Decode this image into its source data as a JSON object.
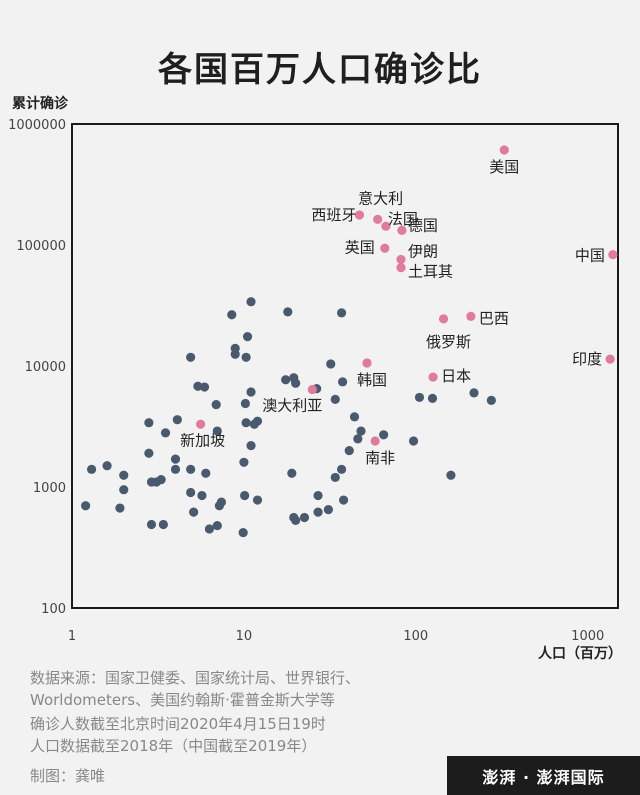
{
  "header": {
    "title": "各国百万人口确诊比"
  },
  "chart_data": {
    "type": "scatter",
    "title": "各国百万人口确诊比",
    "xlabel": "人口（百万）",
    "ylabel": "累计确诊",
    "xscale": "log",
    "yscale": "log",
    "xlim": [
      1,
      1500
    ],
    "ylim": [
      100,
      1000000
    ],
    "xticks": [
      "1",
      "10",
      "100",
      "1000"
    ],
    "yticks": [
      "100",
      "1000",
      "10000",
      "100000",
      "1000000"
    ],
    "grid": false,
    "colors": {
      "highlight": "#e07b9a",
      "other": "#4a5a6e",
      "frame": "#1a1a1a"
    },
    "labeled": [
      {
        "name": "美国",
        "x": 327,
        "y": 610000
      },
      {
        "name": "意大利",
        "x": 60,
        "y": 163000
      },
      {
        "name": "西班牙",
        "x": 47,
        "y": 177000
      },
      {
        "name": "法国",
        "x": 67,
        "y": 143000
      },
      {
        "name": "德国",
        "x": 83,
        "y": 132000
      },
      {
        "name": "英国",
        "x": 66,
        "y": 94000
      },
      {
        "name": "伊朗",
        "x": 82,
        "y": 76000
      },
      {
        "name": "土耳其",
        "x": 82,
        "y": 65000
      },
      {
        "name": "中国",
        "x": 1400,
        "y": 83300
      },
      {
        "name": "巴西",
        "x": 209,
        "y": 25700
      },
      {
        "name": "俄罗斯",
        "x": 145,
        "y": 24500
      },
      {
        "name": "印度",
        "x": 1350,
        "y": 11400
      },
      {
        "name": "韩国",
        "x": 52,
        "y": 10600
      },
      {
        "name": "日本",
        "x": 126,
        "y": 8100
      },
      {
        "name": "澳大利亚",
        "x": 25,
        "y": 6400
      },
      {
        "name": "新加坡",
        "x": 5.6,
        "y": 3300
      },
      {
        "name": "南非",
        "x": 58,
        "y": 2400
      }
    ],
    "others": [
      [
        11,
        34000
      ],
      [
        18,
        28000
      ],
      [
        37,
        27500
      ],
      [
        8.5,
        26500
      ],
      [
        10.5,
        17500
      ],
      [
        8.9,
        14000
      ],
      [
        8.9,
        12500
      ],
      [
        10.3,
        11800
      ],
      [
        4.9,
        11800
      ],
      [
        32,
        10400
      ],
      [
        11,
        6100
      ],
      [
        17.5,
        7700
      ],
      [
        19.5,
        8000
      ],
      [
        26.5,
        6500
      ],
      [
        5.4,
        6800
      ],
      [
        5.9,
        6700
      ],
      [
        37.5,
        7400
      ],
      [
        6.9,
        4800
      ],
      [
        10.2,
        4900
      ],
      [
        20,
        7200
      ],
      [
        12,
        3500
      ],
      [
        2.8,
        3400
      ],
      [
        4.1,
        3600
      ],
      [
        10.3,
        3400
      ],
      [
        11.5,
        3300
      ],
      [
        34,
        5300
      ],
      [
        44,
        3800
      ],
      [
        48,
        2900
      ],
      [
        3.5,
        2800
      ],
      [
        7.0,
        2900
      ],
      [
        11,
        2200
      ],
      [
        46,
        2500
      ],
      [
        65,
        2700
      ],
      [
        97,
        2400
      ],
      [
        105,
        5500
      ],
      [
        125,
        5400
      ],
      [
        218,
        6000
      ],
      [
        275,
        5200
      ],
      [
        2.8,
        1900
      ],
      [
        4.0,
        1700
      ],
      [
        10,
        1600
      ],
      [
        41,
        2000
      ],
      [
        37,
        1400
      ],
      [
        6.0,
        1300
      ],
      [
        19,
        1300
      ],
      [
        4.9,
        1400
      ],
      [
        4.0,
        1400
      ],
      [
        2.0,
        1250
      ],
      [
        1.3,
        1400
      ],
      [
        1.6,
        1500
      ],
      [
        160,
        1250
      ],
      [
        2.9,
        1100
      ],
      [
        3.1,
        1100
      ],
      [
        3.3,
        1150
      ],
      [
        34,
        1200
      ],
      [
        2.0,
        950
      ],
      [
        4.9,
        900
      ],
      [
        5.7,
        850
      ],
      [
        10.1,
        850
      ],
      [
        12,
        780
      ],
      [
        27,
        850
      ],
      [
        1.2,
        700
      ],
      [
        1.9,
        670
      ],
      [
        5.1,
        620
      ],
      [
        7.2,
        700
      ],
      [
        7.4,
        750
      ],
      [
        31,
        650
      ],
      [
        38,
        780
      ],
      [
        27,
        620
      ],
      [
        22.5,
        560
      ],
      [
        20,
        530
      ],
      [
        2.9,
        490
      ],
      [
        3.4,
        490
      ],
      [
        7,
        480
      ],
      [
        6.3,
        450
      ],
      [
        9.9,
        420
      ],
      [
        19.5,
        560
      ]
    ]
  },
  "footer": {
    "source_line1": "数据来源：国家卫健委、国家统计局、世界银行、",
    "source_line2": "Worldometers、美国约翰斯·霍普金斯大学等",
    "note_line1": "确诊人数截至北京时间2020年4月15日19时",
    "note_line2": "人口数据截至2018年（中国截至2019年）",
    "credit": "制图：龚唯",
    "brand": "澎湃 · 澎湃国际"
  }
}
